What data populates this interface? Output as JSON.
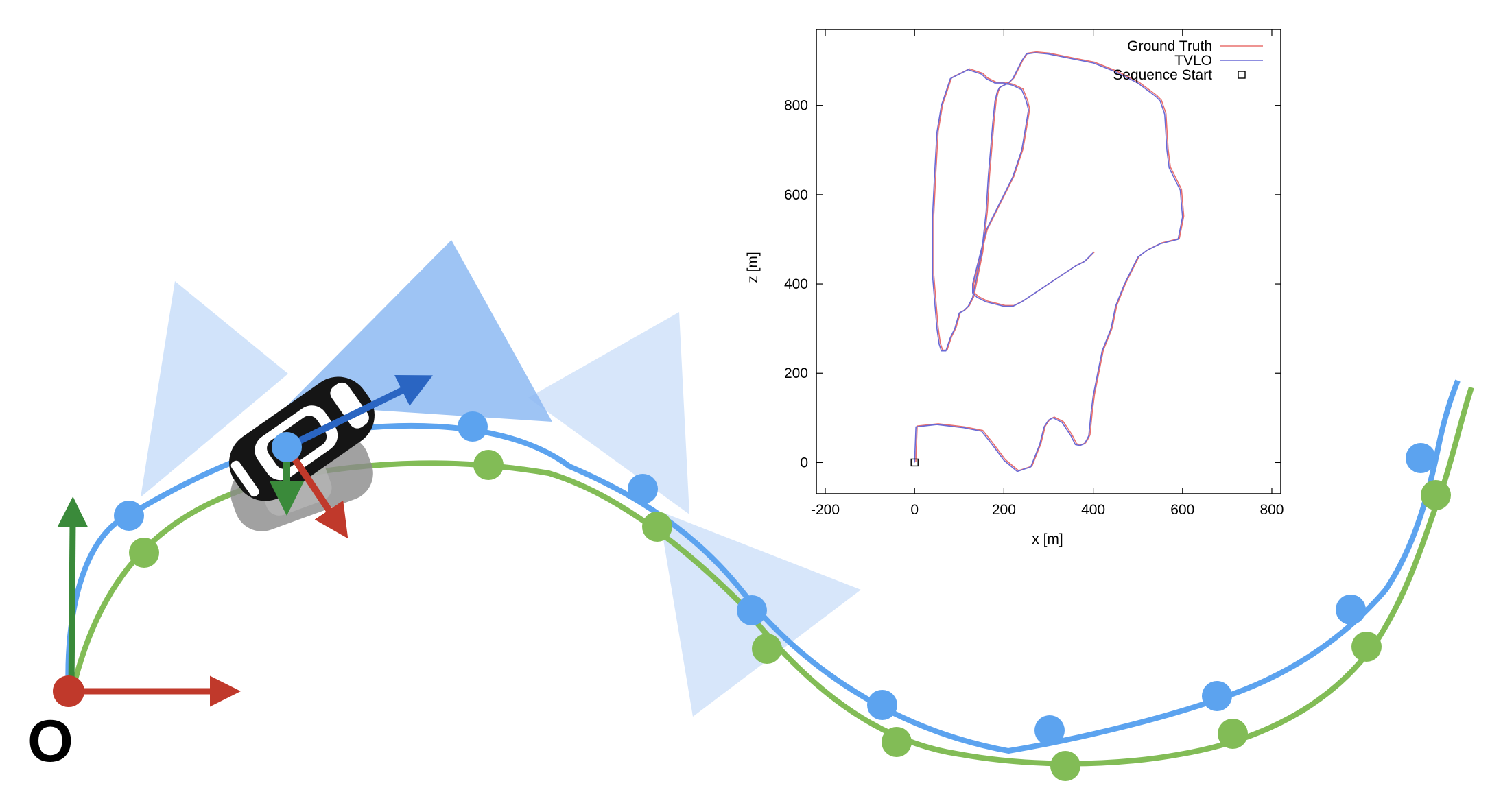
{
  "diagram": {
    "origin_label": "O",
    "colors": {
      "ground_truth_path": "#5ca3ef",
      "estimated_path": "#82bc56",
      "x_axis_arrow": "#c0392b",
      "y_axis_arrow": "#3a8a3a",
      "heading_arrow": "#2a65c2",
      "camera_frustum": "#8db8f2",
      "car_body": "#151515",
      "car_shadow": "#8a8a8a"
    },
    "icons": [
      "car-icon",
      "car-shadow-icon",
      "camera-frustum-icon"
    ]
  },
  "chart_data": {
    "type": "line",
    "title": "",
    "xlabel": "x [m]",
    "ylabel": "z [m]",
    "xlim": [
      -220,
      820
    ],
    "ylim": [
      -70,
      970
    ],
    "xticks": [
      -200,
      0,
      200,
      400,
      600,
      800
    ],
    "yticks": [
      0,
      200,
      400,
      600,
      800
    ],
    "xtick_labels": [
      "-200",
      "0",
      "200",
      "400",
      "600",
      "800"
    ],
    "ytick_labels": [
      "0",
      "200",
      "400",
      "600",
      "800"
    ],
    "grid": false,
    "legend_position": "top-right",
    "series": [
      {
        "name": "Ground Truth",
        "color": "#e8706f",
        "x": [
          0,
          3,
          50,
          110,
          150,
          170,
          200,
          230,
          260,
          280,
          290,
          300,
          310,
          330,
          350,
          360,
          370,
          380,
          385,
          390,
          392,
          395,
          400,
          410,
          420,
          440,
          450,
          470,
          490,
          500,
          520,
          550,
          590,
          600,
          595,
          580,
          570,
          565,
          560,
          550,
          540,
          500,
          450,
          400,
          350,
          300,
          270,
          250,
          240,
          230,
          220,
          210,
          200,
          190,
          185,
          180,
          175,
          170,
          165,
          160,
          150,
          140,
          130,
          120,
          110,
          100,
          90,
          80,
          70,
          60,
          55,
          50,
          45,
          40,
          40,
          45,
          50,
          60,
          80,
          120,
          150,
          160,
          180,
          200,
          220,
          240,
          250,
          255,
          250,
          240,
          220,
          200,
          180,
          160,
          150,
          140,
          135,
          130,
          130,
          140,
          150,
          160,
          180,
          200,
          220,
          240,
          270,
          300,
          330,
          360,
          380,
          390,
          400
        ],
        "y": [
          0,
          80,
          85,
          78,
          70,
          45,
          5,
          -20,
          -10,
          40,
          80,
          95,
          100,
          90,
          60,
          40,
          38,
          42,
          50,
          60,
          80,
          110,
          150,
          200,
          250,
          300,
          350,
          400,
          440,
          460,
          475,
          490,
          500,
          550,
          610,
          640,
          660,
          700,
          780,
          810,
          820,
          850,
          875,
          895,
          905,
          915,
          918,
          915,
          900,
          880,
          860,
          850,
          845,
          840,
          830,
          810,
          760,
          700,
          640,
          560,
          470,
          420,
          370,
          350,
          340,
          335,
          300,
          280,
          250,
          250,
          265,
          300,
          360,
          420,
          550,
          650,
          740,
          800,
          860,
          880,
          870,
          860,
          850,
          850,
          845,
          835,
          810,
          790,
          760,
          700,
          640,
          600,
          560,
          520,
          480,
          440,
          420,
          400,
          380,
          370,
          365,
          360,
          355,
          350,
          350,
          360,
          380,
          400,
          420,
          440,
          450,
          460,
          470
        ]
      },
      {
        "name": "TVLO",
        "color": "#6a6ad6",
        "x": [
          0,
          3,
          50,
          110,
          150,
          170,
          200,
          230,
          260,
          280,
          290,
          300,
          310,
          330,
          350,
          360,
          370,
          380,
          385,
          390,
          392,
          395,
          400,
          410,
          420,
          440,
          450,
          470,
          490,
          500,
          520,
          550,
          590,
          600,
          595,
          580,
          570,
          565,
          560,
          550,
          540,
          500,
          450,
          400,
          350,
          300,
          270,
          250,
          240,
          230,
          220,
          210,
          200,
          190,
          185,
          180,
          175,
          170,
          165,
          160,
          150,
          140,
          130,
          120,
          110,
          100,
          90,
          80,
          70,
          60,
          55,
          50,
          45,
          40,
          40,
          45,
          50,
          60,
          80,
          120,
          150,
          160,
          180,
          200,
          220,
          240,
          250,
          255,
          250,
          240,
          220,
          200,
          180,
          160,
          150,
          140,
          135,
          130,
          130,
          140,
          150,
          160,
          180,
          200,
          220,
          240,
          270,
          300,
          330,
          360,
          380,
          390,
          400
        ],
        "y": [
          0,
          80,
          85,
          78,
          70,
          45,
          5,
          -20,
          -10,
          40,
          80,
          95,
          100,
          90,
          60,
          40,
          38,
          42,
          50,
          60,
          80,
          110,
          150,
          200,
          250,
          300,
          350,
          400,
          440,
          460,
          475,
          490,
          500,
          550,
          610,
          640,
          660,
          700,
          780,
          810,
          820,
          850,
          875,
          895,
          905,
          915,
          918,
          915,
          900,
          880,
          860,
          850,
          845,
          840,
          830,
          810,
          760,
          700,
          640,
          560,
          470,
          420,
          370,
          350,
          340,
          335,
          300,
          280,
          250,
          250,
          265,
          300,
          360,
          420,
          550,
          650,
          740,
          800,
          860,
          880,
          870,
          860,
          850,
          850,
          845,
          835,
          810,
          790,
          760,
          700,
          640,
          600,
          560,
          520,
          480,
          440,
          420,
          400,
          380,
          370,
          365,
          360,
          355,
          350,
          350,
          360,
          380,
          400,
          420,
          440,
          450,
          460,
          470
        ]
      }
    ],
    "markers": [
      {
        "name": "Sequence Start",
        "x": 0,
        "y": 0,
        "shape": "square"
      }
    ]
  }
}
